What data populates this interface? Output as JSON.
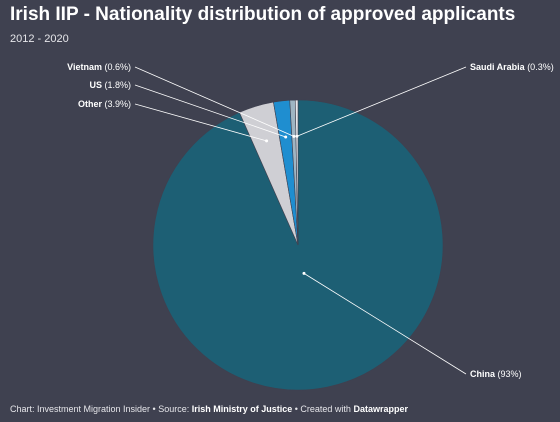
{
  "header": {
    "title": "Irish IIP - Nationality distribution of approved applicants",
    "subtitle": "2012 - 2020"
  },
  "chart_data": {
    "type": "pie",
    "title": "Irish IIP - Nationality distribution of approved applicants",
    "subtitle": "2012 - 2020",
    "slices": [
      {
        "name": "China",
        "value": 93,
        "color": "#1d5f74",
        "label": "China (93%)"
      },
      {
        "name": "Other",
        "value": 3.9,
        "color": "#cfcfd4",
        "label": "Other (3.9%)"
      },
      {
        "name": "US",
        "value": 1.8,
        "color": "#1f8ed0",
        "label": "US (1.8%)"
      },
      {
        "name": "Vietnam",
        "value": 0.6,
        "color": "#9fb5c3",
        "label": "Vietnam (0.6%)"
      },
      {
        "name": "Saudi Arabia",
        "value": 0.3,
        "color": "#e8e8ec",
        "label": "Saudi Arabia (0.3%)"
      }
    ]
  },
  "footer": {
    "prefix": "Chart: Investment Migration Insider • Source: ",
    "source": "Irish Ministry of Justice",
    "mid": " • Created with ",
    "tool": "Datawrapper"
  }
}
